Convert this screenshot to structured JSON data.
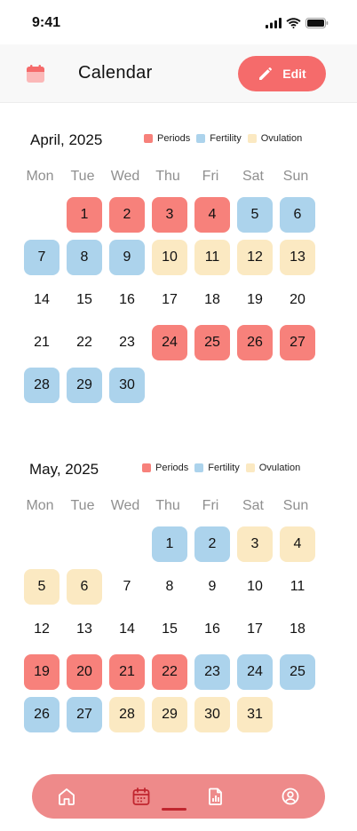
{
  "status_bar": {
    "time": "9:41"
  },
  "header": {
    "title": "Calendar",
    "edit_label": "Edit"
  },
  "legend": {
    "periods": "Periods",
    "fertility": "Fertility",
    "ovulation": "Ovulation"
  },
  "colors": {
    "period": "#f7817b",
    "fertility": "#acd3ec",
    "ovulation": "#fbe9c2",
    "accent": "#f56b6b",
    "nav_bg": "#ee8a8a",
    "nav_active": "#c0252e"
  },
  "weekdays": [
    "Mon",
    "Tue",
    "Wed",
    "Thu",
    "Fri",
    "Sat",
    "Sun"
  ],
  "months": [
    {
      "title": "April, 2025",
      "start_offset": 1,
      "days": [
        {
          "d": "1",
          "type": "period"
        },
        {
          "d": "2",
          "type": "period"
        },
        {
          "d": "3",
          "type": "period"
        },
        {
          "d": "4",
          "type": "period"
        },
        {
          "d": "5",
          "type": "fertility"
        },
        {
          "d": "6",
          "type": "fertility"
        },
        {
          "d": "7",
          "type": "fertility"
        },
        {
          "d": "8",
          "type": "fertility"
        },
        {
          "d": "9",
          "type": "fertility"
        },
        {
          "d": "10",
          "type": "ovulation"
        },
        {
          "d": "11",
          "type": "ovulation"
        },
        {
          "d": "12",
          "type": "ovulation"
        },
        {
          "d": "13",
          "type": "ovulation"
        },
        {
          "d": "14",
          "type": "none"
        },
        {
          "d": "15",
          "type": "none"
        },
        {
          "d": "16",
          "type": "none"
        },
        {
          "d": "17",
          "type": "none"
        },
        {
          "d": "18",
          "type": "none"
        },
        {
          "d": "19",
          "type": "none"
        },
        {
          "d": "20",
          "type": "none"
        },
        {
          "d": "21",
          "type": "none"
        },
        {
          "d": "22",
          "type": "none"
        },
        {
          "d": "23",
          "type": "none"
        },
        {
          "d": "24",
          "type": "period"
        },
        {
          "d": "25",
          "type": "period"
        },
        {
          "d": "26",
          "type": "period"
        },
        {
          "d": "27",
          "type": "period"
        },
        {
          "d": "28",
          "type": "fertility"
        },
        {
          "d": "29",
          "type": "fertility"
        },
        {
          "d": "30",
          "type": "fertility"
        }
      ]
    },
    {
      "title": "May, 2025",
      "start_offset": 3,
      "days": [
        {
          "d": "1",
          "type": "fertility"
        },
        {
          "d": "2",
          "type": "fertility"
        },
        {
          "d": "3",
          "type": "ovulation"
        },
        {
          "d": "4",
          "type": "ovulation"
        },
        {
          "d": "5",
          "type": "ovulation"
        },
        {
          "d": "6",
          "type": "ovulation"
        },
        {
          "d": "7",
          "type": "none"
        },
        {
          "d": "8",
          "type": "none"
        },
        {
          "d": "9",
          "type": "none"
        },
        {
          "d": "10",
          "type": "none"
        },
        {
          "d": "11",
          "type": "none"
        },
        {
          "d": "12",
          "type": "none"
        },
        {
          "d": "13",
          "type": "none"
        },
        {
          "d": "14",
          "type": "none"
        },
        {
          "d": "15",
          "type": "none"
        },
        {
          "d": "16",
          "type": "none"
        },
        {
          "d": "17",
          "type": "none"
        },
        {
          "d": "18",
          "type": "none"
        },
        {
          "d": "19",
          "type": "period"
        },
        {
          "d": "20",
          "type": "period"
        },
        {
          "d": "21",
          "type": "period"
        },
        {
          "d": "22",
          "type": "period"
        },
        {
          "d": "23",
          "type": "fertility"
        },
        {
          "d": "24",
          "type": "fertility"
        },
        {
          "d": "25",
          "type": "fertility"
        },
        {
          "d": "26",
          "type": "fertility"
        },
        {
          "d": "27",
          "type": "fertility"
        },
        {
          "d": "28",
          "type": "ovulation"
        },
        {
          "d": "29",
          "type": "ovulation"
        },
        {
          "d": "30",
          "type": "ovulation"
        },
        {
          "d": "31",
          "type": "ovulation"
        }
      ]
    }
  ],
  "bottom_nav": {
    "items": [
      {
        "icon": "home-icon",
        "active": false
      },
      {
        "icon": "calendar-icon",
        "active": true
      },
      {
        "icon": "report-icon",
        "active": false
      },
      {
        "icon": "profile-icon",
        "active": false
      }
    ]
  }
}
